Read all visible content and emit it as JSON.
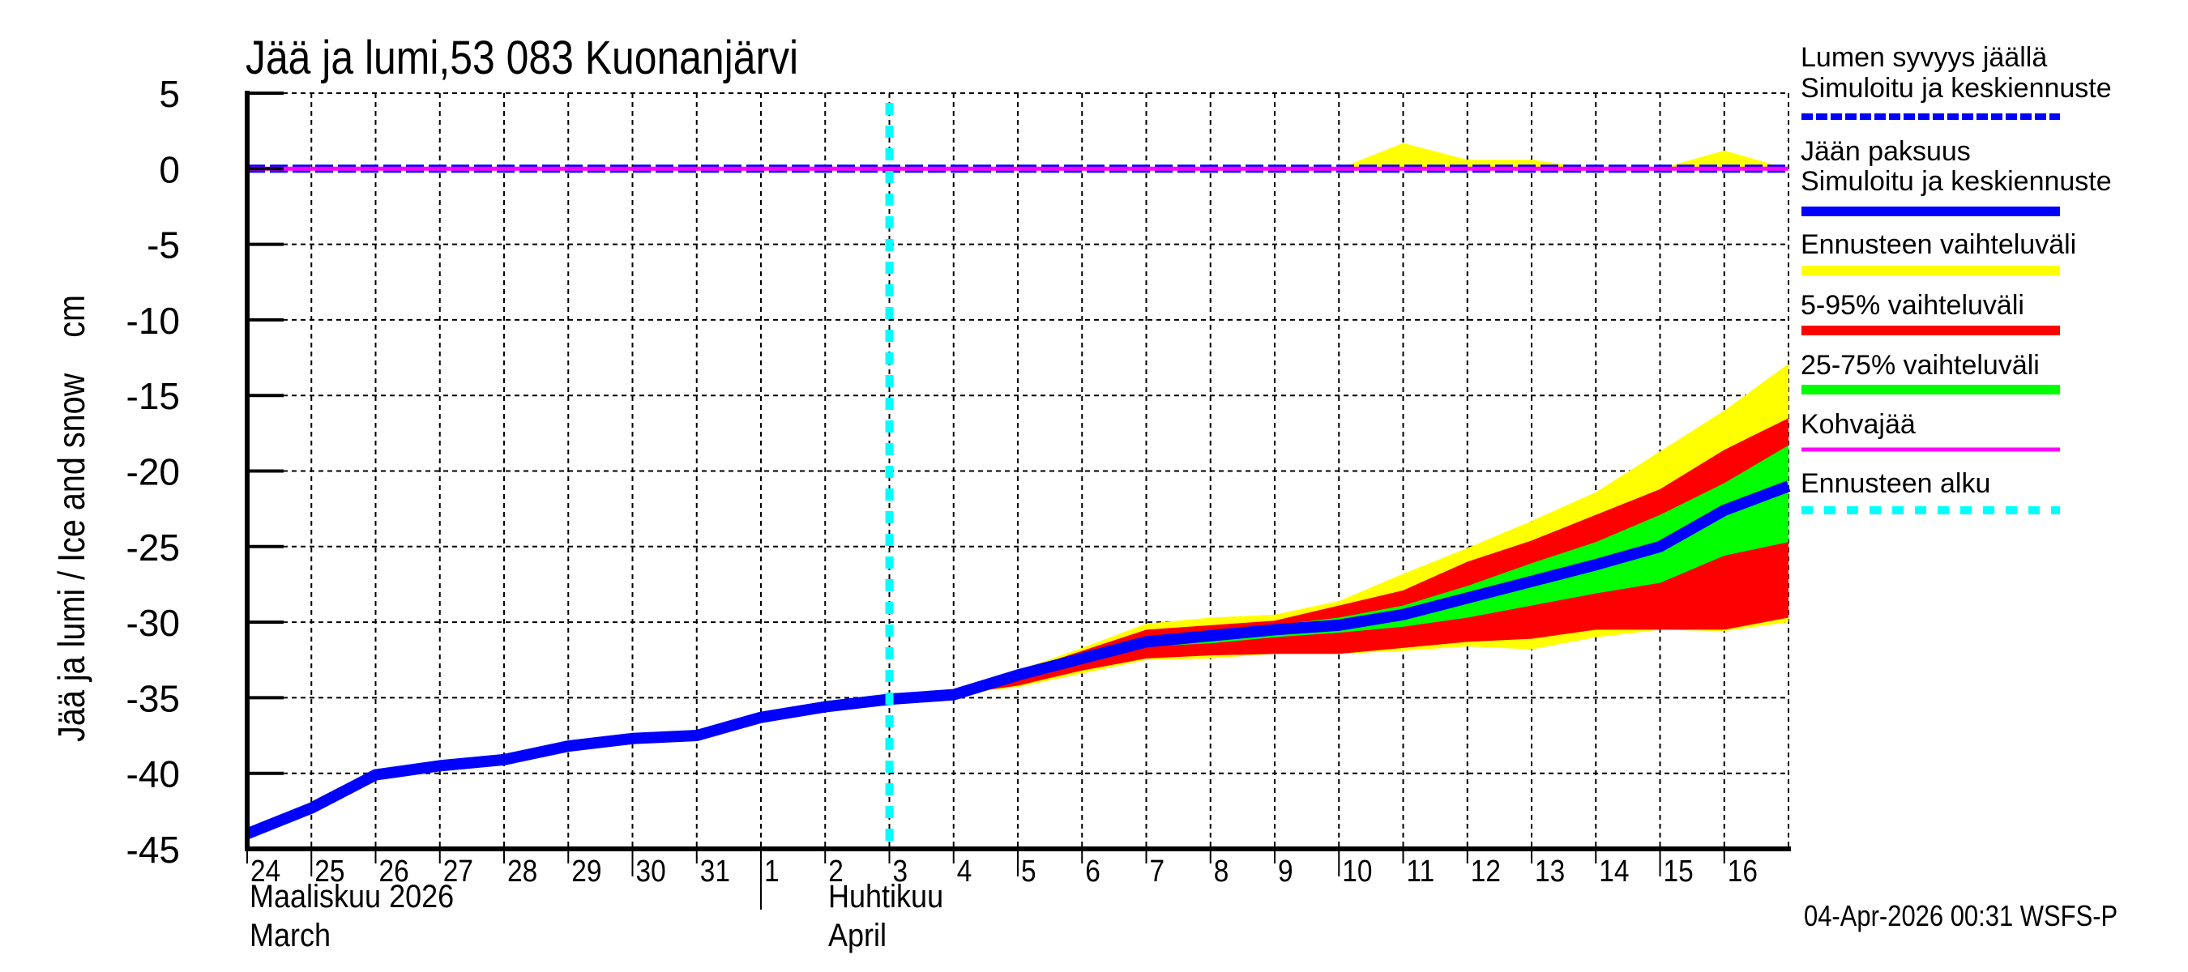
{
  "title": "Jää ja lumi,53 083 Kuonanjärvi",
  "y_axis_label": "Jää ja lumi / Ice and snow    cm",
  "timestamp": "04-Apr-2026 00:31 WSFS-P",
  "months": [
    {
      "fi": "Maaliskuu 2026",
      "en": "March"
    },
    {
      "fi": "Huhtikuu",
      "en": "April"
    }
  ],
  "legend": {
    "snow_title": "Lumen syvyys jäällä",
    "snow_sub": "Simuloitu ja keskiennuste",
    "ice_title": "Jään paksuus",
    "ice_sub": "Simuloitu ja keskiennuste",
    "range_all": "Ennusteen vaihteluväli",
    "range_5_95": "5-95% vaihteluväli",
    "range_25_75": "25-75% vaihteluväli",
    "slush": "Kohvajää",
    "forecast_start": "Ennusteen alku"
  },
  "colors": {
    "ice": "#0000ff",
    "snow": "#0000ff",
    "range_all": "#ffff00",
    "range_5_95": "#ff0000",
    "range_25_75": "#00ff00",
    "slush": "#ff00ff",
    "forecast_start": "#00ffff"
  },
  "chart_data": {
    "type": "area",
    "title": "Jää ja lumi,53 083 Kuonanjärvi",
    "xlabel": "Maaliskuu 2026 / March — Huhtikuu / April",
    "ylabel": "Jää ja lumi / Ice and snow    cm",
    "ylim": [
      -45,
      5
    ],
    "yticks": [
      5,
      0,
      -5,
      -10,
      -15,
      -20,
      -25,
      -30,
      -35,
      -40,
      -45
    ],
    "grid": true,
    "legend_position": "right",
    "x": [
      "24",
      "25",
      "26",
      "27",
      "28",
      "29",
      "30",
      "31",
      "1",
      "2",
      "3",
      "4",
      "5",
      "6",
      "7",
      "8",
      "9",
      "10",
      "11",
      "12",
      "13",
      "14",
      "15",
      "16",
      "17"
    ],
    "x_tick_labels": [
      "24",
      "25",
      "26",
      "27",
      "28",
      "29",
      "30",
      "31",
      "1",
      "2",
      "3",
      "4",
      "5",
      "6",
      "7",
      "8",
      "9",
      "10",
      "11",
      "12",
      "13",
      "14",
      "15",
      "16"
    ],
    "forecast_start_index": 10,
    "series": [
      {
        "name": "Jään paksuus – Simuloitu ja keskiennuste",
        "style": "solid-blue-thick",
        "values": [
          -44.0,
          -42.3,
          -40.1,
          -39.5,
          -39.1,
          -38.2,
          -37.7,
          -37.5,
          -36.3,
          -35.6,
          -35.1,
          -34.8,
          -33.5,
          -32.4,
          -31.3,
          -30.9,
          -30.5,
          -30.2,
          -29.5,
          -28.4,
          -27.3,
          -26.2,
          -25.0,
          -22.6,
          -21.0
        ]
      },
      {
        "name": "Lumen syvyys jäällä – Simuloitu ja keskiennuste",
        "style": "dashed-blue",
        "values": [
          0,
          0,
          0,
          0,
          0,
          0,
          0,
          0,
          0,
          0,
          0,
          0,
          0,
          0,
          0,
          0,
          0,
          0,
          0,
          0,
          0,
          0,
          0,
          0,
          0
        ]
      },
      {
        "name": "Kohvajää",
        "style": "solid-magenta",
        "values": [
          0,
          0,
          0,
          0,
          0,
          0,
          0,
          0,
          0,
          0,
          0,
          0,
          0,
          0,
          0,
          0,
          0,
          0,
          0,
          0,
          0,
          0,
          0,
          0,
          0
        ]
      }
    ],
    "bands": [
      {
        "name": "Ennusteen vaihteluväli (ice)",
        "color": "#ffff00",
        "start_index": 10,
        "upper": [
          -35.1,
          -34.8,
          -33.2,
          -31.7,
          -30.1,
          -29.7,
          -29.5,
          -28.6,
          -26.8,
          -25.1,
          -23.3,
          -21.4,
          -18.7,
          -16.0,
          -12.9
        ],
        "lower": [
          -35.1,
          -34.8,
          -34.3,
          -33.4,
          -32.5,
          -32.4,
          -32.1,
          -32.1,
          -31.9,
          -31.6,
          -31.8,
          -31.0,
          -30.5,
          -30.6,
          -30.0
        ]
      },
      {
        "name": "5-95% vaihteluväli",
        "color": "#ff0000",
        "start_index": 10,
        "upper": [
          -35.1,
          -34.8,
          -33.3,
          -31.9,
          -30.5,
          -30.2,
          -29.9,
          -28.9,
          -27.9,
          -26.0,
          -24.6,
          -22.9,
          -21.2,
          -18.6,
          -16.5
        ],
        "lower": [
          -35.1,
          -34.8,
          -34.2,
          -33.2,
          -32.4,
          -32.2,
          -32.1,
          -32.1,
          -31.7,
          -31.3,
          -31.1,
          -30.5,
          -30.5,
          -30.5,
          -29.7
        ]
      },
      {
        "name": "25-75% vaihteluväli",
        "color": "#00ff00",
        "start_index": 10,
        "upper": [
          -35.1,
          -34.8,
          -33.5,
          -32.4,
          -31.2,
          -30.6,
          -30.2,
          -29.7,
          -28.9,
          -27.6,
          -26.1,
          -24.7,
          -22.9,
          -20.8,
          -18.3
        ],
        "lower": [
          -35.1,
          -34.8,
          -33.5,
          -32.4,
          -31.6,
          -31.4,
          -31.0,
          -30.7,
          -30.3,
          -29.7,
          -28.9,
          -28.1,
          -27.4,
          -25.6,
          -24.7
        ]
      },
      {
        "name": "Ennusteen vaihteluväli (snow)",
        "color": "#ffff00",
        "start_index": 17,
        "upper": [
          0,
          1.7,
          0.6,
          0.6,
          0,
          0,
          1.2,
          0
        ],
        "lower": [
          0,
          0,
          0,
          0,
          0,
          0,
          0,
          0
        ]
      }
    ]
  }
}
